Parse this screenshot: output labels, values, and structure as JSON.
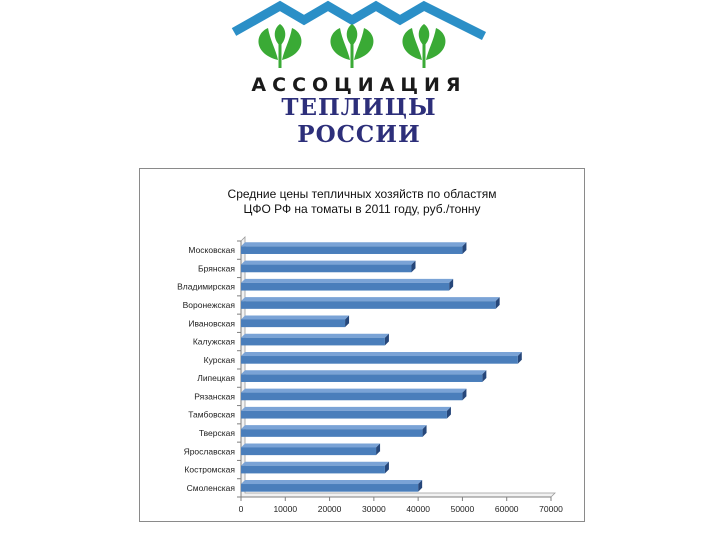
{
  "logo": {
    "line1": "АССОЦИАЦИЯ",
    "line2": "ТЕПЛИЦЫ РОССИИ",
    "roof_color": "#2b8fc7",
    "leaf_color": "#3aaa35"
  },
  "chart_data": {
    "type": "bar",
    "orientation": "horizontal",
    "title_lines": [
      "Средние цены тепличных хозяйств по областям",
      "ЦФО РФ на томаты в 2011 году, руб./тонну"
    ],
    "categories": [
      "Московская",
      "Брянская",
      "Владимирская",
      "Воронежская",
      "Ивановская",
      "Калужская",
      "Курская",
      "Липецкая",
      "Рязанская",
      "Тамбовская",
      "Тверская",
      "Ярославская",
      "Костромская",
      "Смоленская"
    ],
    "values": [
      50000,
      38500,
      47000,
      57500,
      23500,
      32500,
      62500,
      54500,
      50000,
      46500,
      41000,
      30500,
      32500,
      40000
    ],
    "xlim": [
      0,
      70000
    ],
    "xticks": [
      "0",
      "10000",
      "20000",
      "30000",
      "40000",
      "50000",
      "60000",
      "70000"
    ],
    "grid": false,
    "bar_color": "#4a7ebb",
    "bar_shadow_color": "#26477a"
  }
}
